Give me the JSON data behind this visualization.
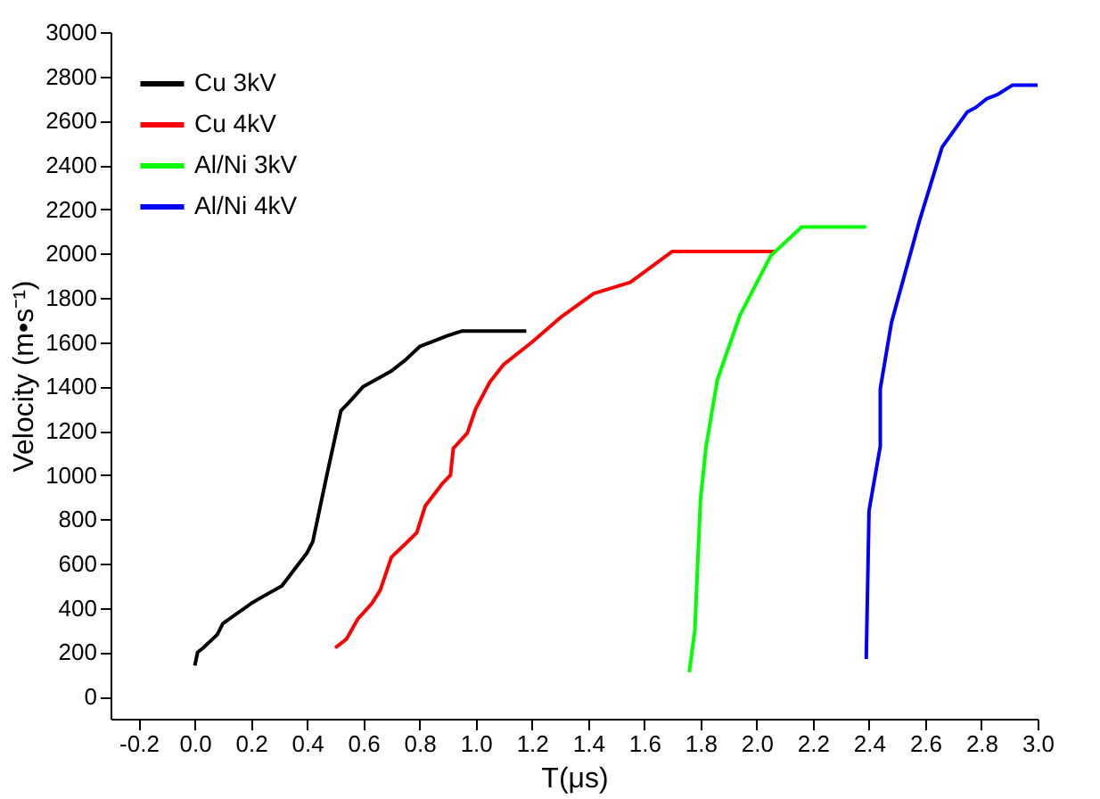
{
  "chart_data": {
    "type": "line",
    "xlabel": "T(μs)",
    "ylabel": "Velocity (m•s⁻¹)",
    "xlim": [
      -0.3,
      3.0
    ],
    "ylim": [
      -100,
      3000
    ],
    "xticks": [
      -0.2,
      {
        "value": 0,
        "label": "0.0"
      },
      0.2,
      0.4,
      0.6,
      0.8,
      {
        "value": 1,
        "label": "1.0"
      },
      1.2,
      1.4,
      1.6,
      1.8,
      {
        "value": 2,
        "label": "2.0"
      },
      2.2,
      2.4,
      2.6,
      2.8,
      {
        "value": 3,
        "label": "3.0"
      }
    ],
    "yticks": [
      0,
      200,
      400,
      600,
      800,
      1000,
      1200,
      1400,
      1600,
      1800,
      2000,
      2200,
      2400,
      2600,
      2800,
      3000
    ],
    "grid": false,
    "legend": "top left",
    "marker": "none",
    "line_style": "solid",
    "series": [
      {
        "name": "Cu 3kV",
        "color": "#000000",
        "x": [
          0,
          0.01,
          0.03,
          0.08,
          0.1,
          0.2,
          0.24,
          0.31,
          0.4,
          0.42,
          0.47,
          0.52,
          0.55,
          0.6,
          0.7,
          0.75,
          0.8,
          0.9,
          0.95,
          1.18
        ],
        "values": [
          140,
          200,
          220,
          280,
          330,
          420,
          450,
          500,
          650,
          700,
          1000,
          1290,
          1330,
          1400,
          1470,
          1520,
          1580,
          1630,
          1650,
          1650
        ]
      },
      {
        "name": "Cu 4kV",
        "color": "#ff0000",
        "x": [
          0.5,
          0.54,
          0.58,
          0.63,
          0.66,
          0.7,
          0.75,
          0.79,
          0.82,
          0.88,
          0.91,
          0.92,
          0.97,
          1.0,
          1.05,
          1.1,
          1.2,
          1.3,
          1.42,
          1.55,
          1.7,
          2.07
        ],
        "values": [
          220,
          260,
          350,
          420,
          480,
          630,
          690,
          740,
          860,
          960,
          1000,
          1120,
          1190,
          1300,
          1420,
          1500,
          1600,
          1710,
          1820,
          1870,
          2010,
          2010
        ]
      },
      {
        "name": "Al/Ni 3kV",
        "color": "#00ff00",
        "x": [
          1.76,
          1.78,
          1.79,
          1.8,
          1.82,
          1.86,
          1.94,
          2.05,
          2.16,
          2.39
        ],
        "values": [
          110,
          300,
          600,
          890,
          1130,
          1430,
          1720,
          1990,
          2120,
          2120
        ]
      },
      {
        "name": "Al/Ni 4kV",
        "color": "#0000ff",
        "x": [
          2.39,
          2.4,
          2.44,
          2.44,
          2.48,
          2.58,
          2.66,
          2.75,
          2.78,
          2.82,
          2.86,
          2.91,
          3.0
        ],
        "values": [
          170,
          840,
          1130,
          1390,
          1690,
          2150,
          2480,
          2640,
          2660,
          2700,
          2720,
          2760,
          2760
        ]
      }
    ]
  }
}
